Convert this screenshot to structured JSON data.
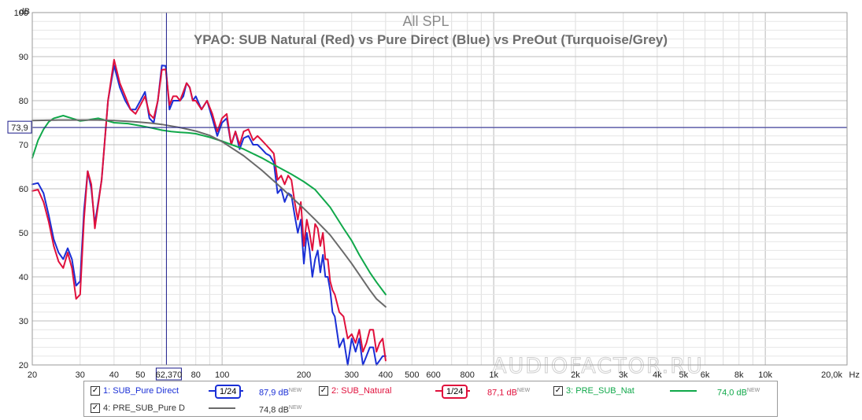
{
  "chart_data": {
    "type": "line",
    "title": "All SPL",
    "subtitle": "YPAO: SUB Natural (Red) vs Pure Direct (Blue) vs PreOut (Turquoise/Grey)",
    "ylabel": "dB",
    "xlabel": "Hz",
    "x_scale": "log",
    "xlim": [
      20,
      20000
    ],
    "ylim": [
      20,
      100
    ],
    "grid": true,
    "x_ticks": [
      {
        "value": 20,
        "label": "20"
      },
      {
        "value": 30,
        "label": "30"
      },
      {
        "value": 40,
        "label": "40"
      },
      {
        "value": 50,
        "label": "50"
      },
      {
        "value": 80,
        "label": "80"
      },
      {
        "value": 100,
        "label": "100"
      },
      {
        "value": 200,
        "label": "200"
      },
      {
        "value": 300,
        "label": "300"
      },
      {
        "value": 400,
        "label": "400"
      },
      {
        "value": 500,
        "label": "500"
      },
      {
        "value": 600,
        "label": "600"
      },
      {
        "value": 800,
        "label": "800"
      },
      {
        "value": 1000,
        "label": "1k"
      },
      {
        "value": 2000,
        "label": "2k"
      },
      {
        "value": 3000,
        "label": "3k"
      },
      {
        "value": 4000,
        "label": "4k"
      },
      {
        "value": 5000,
        "label": "5k"
      },
      {
        "value": 6000,
        "label": "6k"
      },
      {
        "value": 8000,
        "label": "8k"
      },
      {
        "value": 10000,
        "label": "10k"
      },
      {
        "value": 20000,
        "label": "20,0k"
      }
    ],
    "y_ticks": [
      20,
      30,
      40,
      50,
      60,
      70,
      80,
      90,
      100
    ],
    "cursor": {
      "x": 62.37,
      "y": 73.9,
      "x_label": "62,370",
      "y_label": "73,9"
    },
    "watermark": "AUDIOFACTOR.RU",
    "series": [
      {
        "name": "SUB_Pure Direct",
        "color": "#1a2fd6",
        "x": [
          20,
          21,
          22,
          23,
          24,
          25,
          26,
          27,
          28,
          29,
          30,
          31,
          32,
          33,
          34,
          36,
          38,
          40,
          42,
          44,
          46,
          48,
          50,
          52,
          54,
          56,
          58,
          60,
          62,
          64,
          66,
          68,
          70,
          72,
          74,
          76,
          78,
          80,
          84,
          88,
          92,
          96,
          100,
          104,
          108,
          112,
          116,
          120,
          125,
          130,
          135,
          140,
          145,
          150,
          155,
          160,
          165,
          170,
          175,
          180,
          185,
          190,
          195,
          200,
          205,
          210,
          215,
          220,
          225,
          230,
          235,
          240,
          245,
          250,
          255,
          260,
          270,
          280,
          290,
          300,
          310,
          320,
          330,
          340,
          350,
          360,
          370,
          380,
          390,
          400
        ],
        "values": [
          61,
          61.3,
          59,
          54,
          48.5,
          45.5,
          44,
          46.5,
          44,
          38,
          39,
          55,
          64,
          60,
          52,
          62,
          80,
          88,
          83,
          80,
          78,
          78,
          80,
          82,
          76,
          75,
          80,
          88,
          87.9,
          78,
          80,
          80,
          80,
          81,
          84,
          83,
          80,
          81,
          78,
          80,
          76,
          72,
          75,
          76,
          70,
          73,
          69,
          71.5,
          72,
          70,
          70,
          69,
          68,
          67.5,
          66,
          59,
          60,
          57,
          59,
          58.5,
          54,
          50,
          53,
          43,
          50,
          46,
          40,
          44,
          46,
          41,
          45,
          40,
          40,
          37,
          32,
          31,
          24,
          26,
          20,
          26,
          23,
          26,
          20,
          22,
          24,
          24,
          20,
          21,
          22,
          22
        ]
      },
      {
        "name": "SUB_Natural",
        "color": "#e0103c",
        "x": [
          20,
          21,
          22,
          23,
          24,
          25,
          26,
          27,
          28,
          29,
          30,
          31,
          32,
          33,
          34,
          36,
          38,
          40,
          42,
          44,
          46,
          48,
          50,
          52,
          54,
          56,
          58,
          60,
          62,
          64,
          66,
          68,
          70,
          72,
          74,
          76,
          78,
          80,
          84,
          88,
          92,
          96,
          100,
          104,
          108,
          112,
          116,
          120,
          125,
          130,
          135,
          140,
          145,
          150,
          155,
          160,
          165,
          170,
          175,
          180,
          185,
          190,
          195,
          200,
          205,
          210,
          215,
          220,
          225,
          230,
          235,
          240,
          245,
          250,
          255,
          260,
          270,
          280,
          290,
          300,
          310,
          320,
          330,
          340,
          350,
          360,
          370,
          380,
          390,
          400
        ],
        "values": [
          59.5,
          59.8,
          57,
          52.5,
          47,
          43.5,
          42,
          45.5,
          42,
          35,
          36,
          53,
          64,
          61,
          51,
          62,
          80,
          89.3,
          84,
          81,
          78,
          77,
          79,
          81,
          77,
          76,
          80,
          87,
          87.1,
          79,
          81,
          81,
          80,
          82,
          84,
          83,
          80,
          80,
          78,
          80,
          77,
          73,
          76,
          77,
          70,
          73,
          70,
          73,
          73.5,
          71,
          72,
          71,
          70,
          69,
          68,
          62,
          63,
          61,
          63,
          62,
          57,
          53,
          57,
          47,
          53,
          50,
          46,
          52,
          51,
          47,
          50,
          44,
          44,
          39,
          37,
          36,
          32,
          31,
          26,
          27,
          25,
          28,
          23,
          25,
          28,
          28,
          23,
          25,
          26,
          21
        ]
      },
      {
        "name": "PRE_SUB_Nat",
        "color": "#10a84a",
        "x": [
          20,
          21,
          22,
          23,
          24,
          26,
          28,
          30,
          32,
          35,
          38,
          40,
          45,
          50,
          55,
          60,
          65,
          70,
          75,
          80,
          90,
          100,
          120,
          140,
          160,
          180,
          200,
          220,
          250,
          280,
          300,
          320,
          350,
          370,
          400
        ],
        "values": [
          67,
          71,
          73.5,
          75.2,
          76,
          76.6,
          76,
          75.4,
          75.6,
          76,
          75.4,
          75,
          74.8,
          74.3,
          73.8,
          73.3,
          73,
          72.8,
          72.7,
          72.5,
          71.7,
          70.8,
          69,
          67,
          65,
          63.3,
          61.6,
          59.8,
          55.8,
          51,
          48.2,
          45,
          41,
          38.8,
          36
        ]
      },
      {
        "name": "PRE_SUB_Pure D",
        "color": "#6a6a6a",
        "x": [
          20,
          25,
          30,
          35,
          40,
          45,
          50,
          55,
          60,
          70,
          80,
          90,
          100,
          120,
          140,
          160,
          180,
          200,
          220,
          250,
          280,
          300,
          320,
          350,
          370,
          400
        ],
        "values": [
          75.5,
          75.6,
          75.6,
          75.6,
          75.5,
          75.3,
          75.1,
          74.9,
          74.6,
          73.9,
          73.1,
          72.1,
          70.7,
          67.5,
          64.2,
          61,
          58.1,
          55.5,
          53,
          49.5,
          45.5,
          43,
          40.5,
          37,
          35,
          33.2
        ]
      }
    ]
  },
  "legend": [
    {
      "index": "1:",
      "name": "SUB_Pure Direct",
      "smoothing": "1/24",
      "value": "87,9 dB",
      "badge": "NEW",
      "color": "#1a2fd6"
    },
    {
      "index": "2:",
      "name": "SUB_Natural",
      "smoothing": "1/24",
      "value": "87,1 dB",
      "badge": "NEW",
      "color": "#e0103c"
    },
    {
      "index": "3:",
      "name": "PRE_SUB_Nat",
      "smoothing": "",
      "value": "74,0 dB",
      "badge": "NEW",
      "color": "#10a84a"
    },
    {
      "index": "4:",
      "name": "PRE_SUB_Pure D",
      "smoothing": "",
      "value": "74,8 dB",
      "badge": "NEW",
      "color": "#6a6a6a"
    }
  ]
}
